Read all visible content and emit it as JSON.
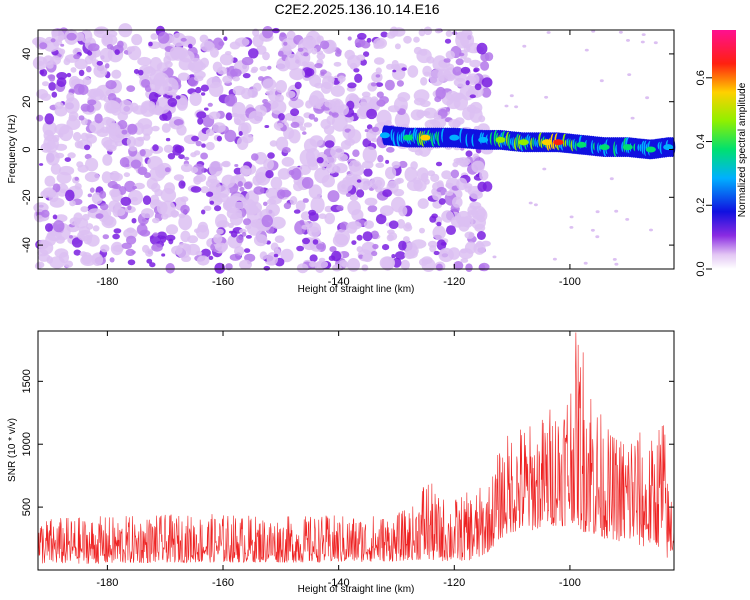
{
  "title": "C2E2.2025.136.10.14.E16",
  "top_panel": {
    "xlabel": "Height of straight line (km)",
    "ylabel": "Frequency (Hz)",
    "x_ticks": [
      -180,
      -160,
      -140,
      -120,
      -100
    ],
    "y_ticks": [
      -40,
      -20,
      0,
      20,
      40
    ]
  },
  "colorbar": {
    "label": "Normalized spectral amplitude",
    "ticks": [
      "0.0",
      "0.2",
      "0.4",
      "0.6"
    ]
  },
  "bottom_panel": {
    "xlabel": "Height of straight line (km)",
    "ylabel": "SNR (10 * v/v)",
    "x_ticks": [
      -180,
      -160,
      -140,
      -120,
      -100
    ],
    "y_ticks": [
      500,
      1000,
      1500
    ]
  },
  "colors": {
    "snr_line": "#ee2222",
    "spectrogram_low": "#d8b4f0",
    "spectrogram_mid": "#7a1fe0"
  },
  "chart_data": [
    {
      "type": "heatmap",
      "title": "C2E2.2025.136.10.14.E16",
      "xlabel": "Height of straight line (km)",
      "ylabel": "Frequency (Hz)",
      "xlim": [
        -192,
        -82
      ],
      "ylim": [
        -50,
        50
      ],
      "colorbar_label": "Normalized spectral amplitude",
      "zlim": [
        0,
        0.75
      ],
      "noise_region_x": [
        -192,
        -114
      ],
      "signal_band": [
        {
          "x": -132,
          "freq": 6,
          "amp": 0.3
        },
        {
          "x": -128,
          "freq": 5,
          "amp": 0.4
        },
        {
          "x": -125,
          "freq": 5,
          "amp": 0.6
        },
        {
          "x": -120,
          "freq": 5,
          "amp": 0.3
        },
        {
          "x": -115,
          "freq": 4,
          "amp": 0.35
        },
        {
          "x": -112,
          "freq": 4,
          "amp": 0.55
        },
        {
          "x": -108,
          "freq": 3,
          "amp": 0.55
        },
        {
          "x": -104,
          "freq": 3,
          "amp": 0.6
        },
        {
          "x": -102,
          "freq": 3,
          "amp": 0.7
        },
        {
          "x": -98,
          "freq": 2,
          "amp": 0.45
        },
        {
          "x": -94,
          "freq": 1,
          "amp": 0.4
        },
        {
          "x": -90,
          "freq": 1,
          "amp": 0.45
        },
        {
          "x": -86,
          "freq": 0,
          "amp": 0.4
        },
        {
          "x": -83,
          "freq": 1,
          "amp": 0.35
        }
      ]
    },
    {
      "type": "line",
      "xlabel": "Height of straight line (km)",
      "ylabel": "SNR (10 * v/v)",
      "xlim": [
        -192,
        -82
      ],
      "ylim": [
        0,
        1900
      ],
      "series": [
        {
          "color": "#ee2222",
          "envelope_x": [
            -192,
            -180,
            -170,
            -160,
            -150,
            -140,
            -130,
            -127,
            -125,
            -123,
            -120,
            -116,
            -114,
            -112,
            -110,
            -108,
            -106,
            -104,
            -102,
            -100,
            -99,
            -98,
            -97,
            -95,
            -93,
            -91,
            -89,
            -87,
            -85,
            -84,
            -83,
            -82
          ],
          "envelope_max": [
            420,
            430,
            440,
            450,
            430,
            440,
            450,
            520,
            800,
            600,
            580,
            650,
            700,
            1000,
            1150,
            1200,
            1150,
            1300,
            1400,
            1600,
            1900,
            1900,
            1750,
            1300,
            1100,
            1100,
            1250,
            1000,
            1100,
            1450,
            700,
            800
          ],
          "envelope_min": [
            50,
            50,
            60,
            60,
            60,
            60,
            70,
            80,
            80,
            70,
            70,
            80,
            150,
            250,
            300,
            300,
            320,
            350,
            350,
            350,
            400,
            300,
            300,
            250,
            250,
            220,
            200,
            180,
            200,
            120,
            80,
            120
          ]
        }
      ]
    }
  ]
}
